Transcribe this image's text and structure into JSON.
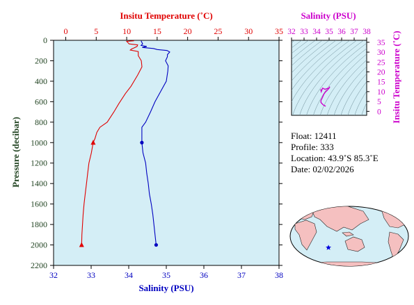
{
  "chart_data": [
    {
      "type": "line",
      "x_axes": [
        {
          "label": "Insitu Temperature (˚C)",
          "position": "top",
          "range": [
            -2,
            35
          ],
          "ticks": [
            0,
            5,
            10,
            15,
            20,
            25,
            30,
            35
          ],
          "color": "#e00000"
        },
        {
          "label": "Salinity (PSU)",
          "position": "bottom",
          "range": [
            32,
            38
          ],
          "ticks": [
            32,
            33,
            34,
            35,
            36,
            37,
            38
          ],
          "color": "#0000c0"
        }
      ],
      "y_axis": {
        "label": "Pressure (decibar)",
        "range": [
          0,
          2200
        ],
        "inverted": true,
        "ticks": [
          0,
          200,
          400,
          600,
          800,
          1000,
          1200,
          1400,
          1600,
          1800,
          2000,
          2200
        ]
      },
      "grid": false,
      "background": "#d4eef6",
      "series": [
        {
          "color": "#e00000",
          "marker": "triangle",
          "x_axis": "top",
          "points": [
            [
              11.2,
              5
            ],
            [
              10.0,
              10
            ],
            [
              10.4,
              35
            ],
            [
              11.8,
              45
            ],
            [
              11.7,
              60
            ],
            [
              11.2,
              75
            ],
            [
              10.8,
              85
            ],
            [
              10.6,
              95
            ],
            [
              11.9,
              110
            ],
            [
              11.9,
              150
            ],
            [
              12.4,
              200
            ],
            [
              12.5,
              260
            ],
            [
              11.8,
              340
            ],
            [
              10.7,
              450
            ],
            [
              9.8,
              520
            ],
            [
              8.7,
              620
            ],
            [
              7.9,
              700
            ],
            [
              6.8,
              800
            ],
            [
              5.6,
              850
            ],
            [
              5.1,
              900
            ],
            [
              4.8,
              960
            ],
            [
              4.5,
              1000
            ],
            [
              4.2,
              1100
            ],
            [
              3.8,
              1200
            ],
            [
              3.6,
              1300
            ],
            [
              3.4,
              1400
            ],
            [
              3.2,
              1500
            ],
            [
              3.0,
              1600
            ],
            [
              2.85,
              1700
            ],
            [
              2.75,
              1800
            ],
            [
              2.65,
              1900
            ],
            [
              2.6,
              2000
            ]
          ],
          "marker_points": [
            [
              4.5,
              1000
            ],
            [
              2.6,
              2000
            ]
          ]
        },
        {
          "color": "#0000c0",
          "marker": "circle",
          "x_axis": "bottom",
          "points": [
            [
              34.33,
              5
            ],
            [
              34.37,
              35
            ],
            [
              34.33,
              50
            ],
            [
              34.48,
              60
            ],
            [
              34.36,
              70
            ],
            [
              34.66,
              80
            ],
            [
              34.76,
              90
            ],
            [
              35.02,
              100
            ],
            [
              35.09,
              115
            ],
            [
              35.03,
              140
            ],
            [
              35.03,
              160
            ],
            [
              34.98,
              200
            ],
            [
              35.05,
              250
            ],
            [
              35.04,
              300
            ],
            [
              35.0,
              400
            ],
            [
              34.85,
              500
            ],
            [
              34.7,
              600
            ],
            [
              34.58,
              700
            ],
            [
              34.45,
              800
            ],
            [
              34.35,
              850
            ],
            [
              34.35,
              1000
            ],
            [
              34.38,
              1100
            ],
            [
              34.45,
              1200
            ],
            [
              34.48,
              1300
            ],
            [
              34.52,
              1400
            ],
            [
              34.55,
              1500
            ],
            [
              34.6,
              1600
            ],
            [
              34.64,
              1700
            ],
            [
              34.67,
              1800
            ],
            [
              34.7,
              1900
            ],
            [
              34.73,
              2000
            ]
          ],
          "marker_points": [
            [
              34.35,
              1000
            ],
            [
              34.73,
              2000
            ]
          ]
        }
      ]
    },
    {
      "type": "line",
      "x_axis": {
        "label": "Salinity (PSU)",
        "range": [
          32,
          38
        ],
        "ticks": [
          32,
          33,
          34,
          35,
          36,
          37,
          38
        ],
        "position": "top",
        "color": "#cc00cc"
      },
      "y_axis": {
        "label": "Insitu Temperature (˚C)",
        "range": [
          -2,
          36
        ],
        "ticks": [
          0,
          5,
          10,
          15,
          20,
          25,
          30,
          35
        ],
        "position": "right",
        "color": "#cc00cc"
      },
      "background": "#d4eef6",
      "series": [
        {
          "color": "#cc00cc",
          "x_axis": "bottom",
          "points": [
            [
              34.33,
              11.2
            ],
            [
              34.37,
              10.0
            ],
            [
              34.48,
              11.8
            ],
            [
              34.66,
              11.2
            ],
            [
              35.02,
              11.9
            ],
            [
              35.03,
              12.4
            ],
            [
              35.05,
              12.5
            ],
            [
              35.0,
              11.8
            ],
            [
              34.85,
              10.7
            ],
            [
              34.7,
              9.8
            ],
            [
              34.58,
              8.7
            ],
            [
              34.45,
              6.8
            ],
            [
              34.35,
              5.6
            ],
            [
              34.35,
              4.5
            ],
            [
              34.45,
              3.8
            ],
            [
              34.55,
              3.2
            ],
            [
              34.64,
              2.85
            ],
            [
              34.73,
              2.6
            ]
          ]
        }
      ]
    }
  ],
  "info": {
    "float": "Float:  12411",
    "profile": "Profile:  333",
    "location": "Location:  43.9˚S  85.3˚E",
    "date": "Date:  02/02/2026"
  },
  "map": {
    "marker_lon": 85.3,
    "marker_lat": -43.9,
    "ocean": "#d4eef6",
    "land": "#f5c0c0",
    "marker_color": "#0000dd"
  }
}
